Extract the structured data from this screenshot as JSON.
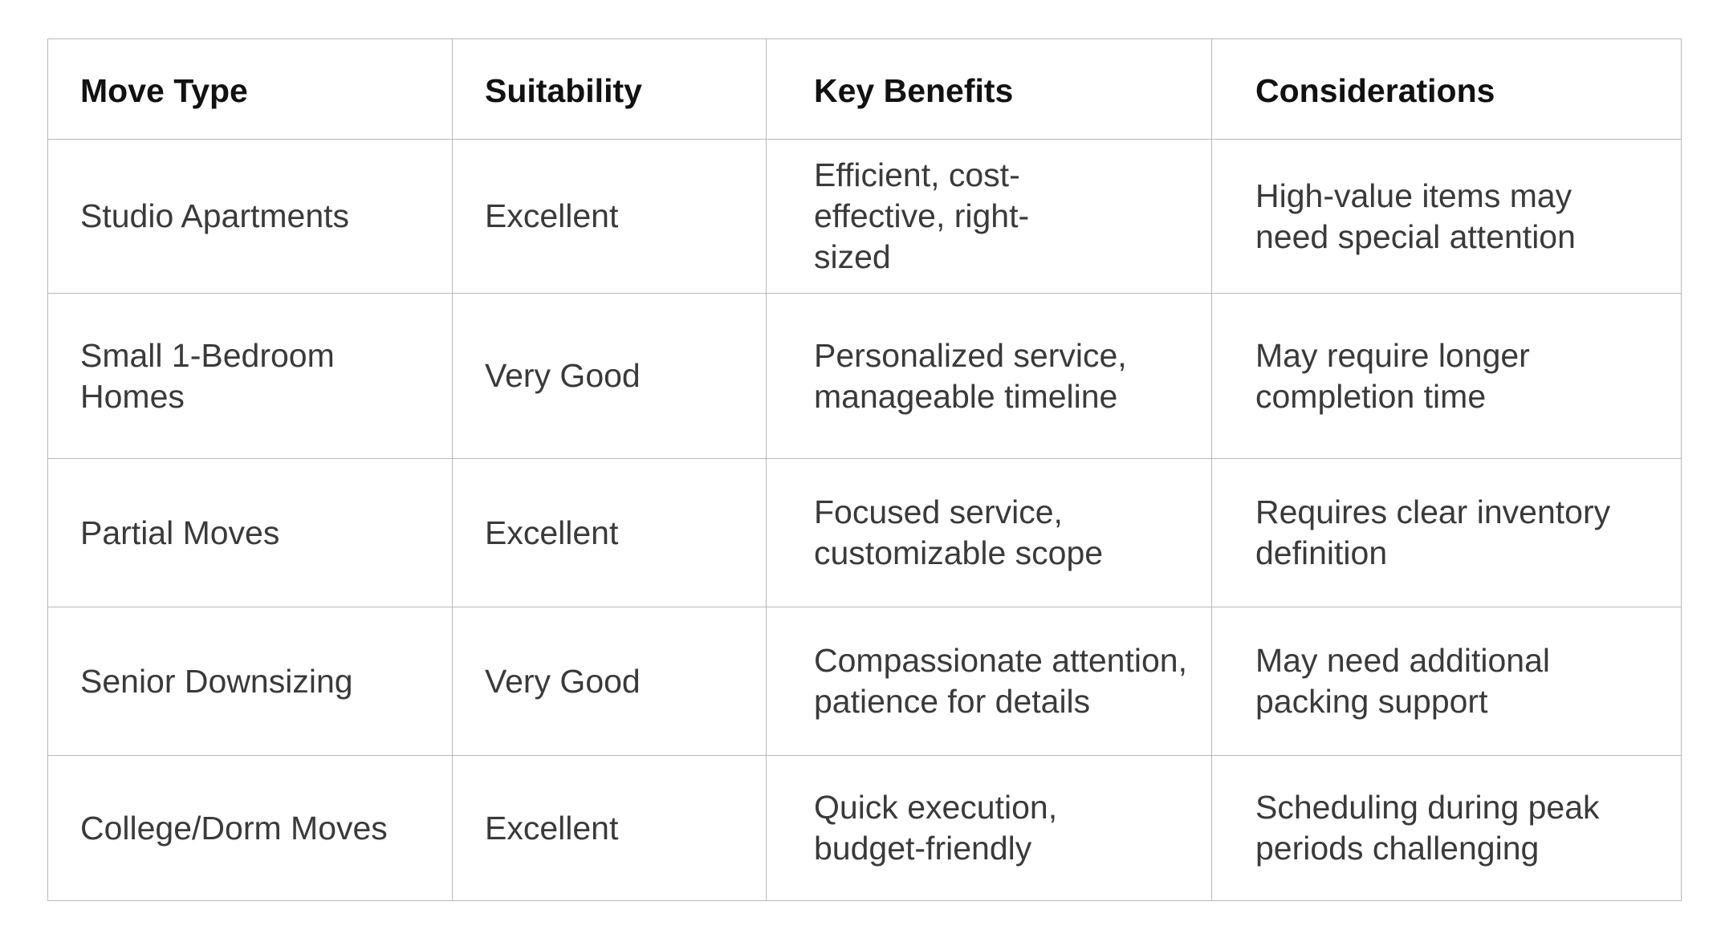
{
  "table": {
    "headers": [
      "Move Type",
      "Suitability",
      "Key Benefits",
      "Considerations"
    ],
    "rows": [
      {
        "move_type": "Studio Apartments",
        "suitability": "Excellent",
        "benefits": "Efficient, cost-effective, right-sized",
        "considerations": "High-value items may need special attention"
      },
      {
        "move_type": "Small 1-Bedroom Homes",
        "suitability": "Very Good",
        "benefits": "Personalized service, manageable timeline",
        "considerations": "May require longer completion time"
      },
      {
        "move_type": "Partial Moves",
        "suitability": "Excellent",
        "benefits": "Focused service, customizable scope",
        "considerations": "Requires clear inventory definition"
      },
      {
        "move_type": "Senior Downsizing",
        "suitability": "Very Good",
        "benefits": "Compassionate attention, patience for details",
        "considerations": "May need additional packing support"
      },
      {
        "move_type": "College/Dorm Moves",
        "suitability": "Excellent",
        "benefits": "Quick execution, budget-friendly",
        "considerations": "Scheduling during peak periods challenging"
      }
    ]
  }
}
